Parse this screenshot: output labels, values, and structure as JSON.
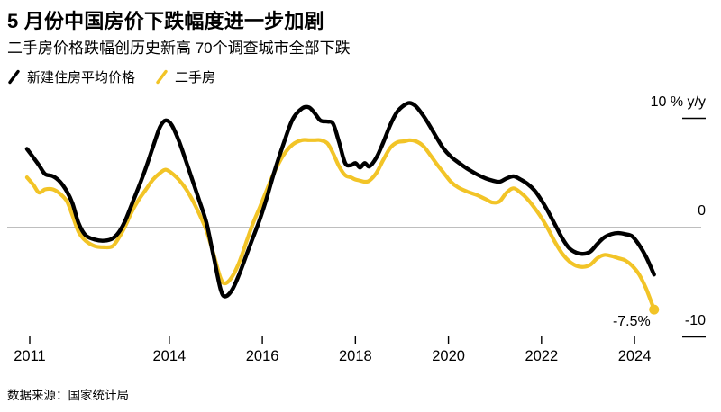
{
  "chart_data": {
    "type": "line",
    "title": "5 月份中国房价下跌幅度进一步加剧",
    "subtitle": "二手房价格跌幅创历史新高 70个调查城市全部下跌",
    "source": "数据来源：国家统计局",
    "unit_label": "% y/y",
    "ylim": [
      -10,
      12
    ],
    "grid": "zero-line-only",
    "legend_position": "top-left",
    "x": [
      2010.94,
      2011.08,
      2011.2,
      2011.33,
      2011.5,
      2011.65,
      2011.8,
      2011.92,
      2012.05,
      2012.2,
      2012.4,
      2012.6,
      2012.78,
      2012.92,
      2013.05,
      2013.2,
      2013.35,
      2013.5,
      2013.65,
      2013.8,
      2013.92,
      2014.05,
      2014.2,
      2014.35,
      2014.5,
      2014.65,
      2014.8,
      2014.95,
      2015.1,
      2015.2,
      2015.35,
      2015.5,
      2015.65,
      2015.8,
      2015.95,
      2016.1,
      2016.25,
      2016.45,
      2016.65,
      2016.85,
      2017.0,
      2017.12,
      2017.25,
      2017.4,
      2017.52,
      2017.65,
      2017.78,
      2017.9,
      2018.0,
      2018.1,
      2018.2,
      2018.3,
      2018.45,
      2018.6,
      2018.75,
      2018.9,
      2019.05,
      2019.17,
      2019.3,
      2019.45,
      2019.6,
      2019.75,
      2019.9,
      2020.05,
      2020.2,
      2020.4,
      2020.6,
      2020.8,
      2020.95,
      2021.1,
      2021.25,
      2021.4,
      2021.55,
      2021.7,
      2021.85,
      2022.0,
      2022.15,
      2022.3,
      2022.45,
      2022.6,
      2022.75,
      2022.9,
      2023.05,
      2023.2,
      2023.35,
      2023.5,
      2023.65,
      2023.8,
      2023.95,
      2024.1,
      2024.25,
      2024.42
    ],
    "series": [
      {
        "id": "new-home-avg-price",
        "name": "新建住房平均价格",
        "color": "#000000",
        "stroke_width": 4.4,
        "end_dot": false,
        "values": [
          7.2,
          6.4,
          5.7,
          4.9,
          4.7,
          4.2,
          3.3,
          2.2,
          0.4,
          -0.7,
          -1.1,
          -1.2,
          -1.0,
          -0.4,
          0.6,
          2.2,
          3.8,
          5.5,
          7.4,
          9.2,
          9.8,
          9.4,
          8.0,
          6.2,
          4.3,
          2.4,
          0.4,
          -2.6,
          -5.6,
          -6.3,
          -5.7,
          -4.3,
          -2.6,
          -0.9,
          0.8,
          2.8,
          5.0,
          7.6,
          9.9,
          10.9,
          11.0,
          10.5,
          9.8,
          9.7,
          9.5,
          7.8,
          5.9,
          5.7,
          5.9,
          5.5,
          5.9,
          5.6,
          6.4,
          7.8,
          9.4,
          10.6,
          11.2,
          11.4,
          11.1,
          10.3,
          9.3,
          8.2,
          7.2,
          6.5,
          6.0,
          5.4,
          4.9,
          4.5,
          4.3,
          4.2,
          4.5,
          4.7,
          4.4,
          4.0,
          3.4,
          2.5,
          1.4,
          0.2,
          -1.0,
          -1.9,
          -2.3,
          -2.4,
          -2.2,
          -1.5,
          -0.9,
          -0.6,
          -0.5,
          -0.6,
          -0.8,
          -1.6,
          -2.7,
          -4.3
        ]
      },
      {
        "id": "secondhand-home",
        "name": "二手房",
        "color": "#F2C427",
        "stroke_width": 4.2,
        "end_dot": true,
        "values": [
          4.6,
          3.9,
          3.2,
          3.5,
          3.5,
          3.1,
          2.4,
          1.1,
          -0.4,
          -1.2,
          -1.7,
          -1.8,
          -1.7,
          -0.9,
          0.1,
          1.5,
          2.6,
          3.5,
          4.4,
          5.0,
          5.3,
          5.0,
          4.4,
          3.6,
          2.5,
          1.2,
          -0.3,
          -2.4,
          -4.6,
          -5.1,
          -4.5,
          -3.2,
          -1.4,
          0.4,
          1.9,
          3.5,
          5.0,
          6.6,
          7.6,
          8.0,
          8.0,
          8.0,
          8.0,
          7.7,
          6.8,
          5.6,
          4.8,
          4.6,
          4.4,
          4.3,
          4.2,
          4.3,
          5.0,
          6.2,
          7.3,
          7.8,
          7.9,
          8.0,
          7.9,
          7.5,
          6.7,
          5.8,
          5.0,
          4.2,
          3.7,
          3.3,
          3.0,
          2.6,
          2.3,
          2.4,
          3.2,
          3.6,
          3.2,
          2.6,
          1.8,
          0.9,
          -0.2,
          -1.4,
          -2.4,
          -3.1,
          -3.5,
          -3.6,
          -3.4,
          -2.8,
          -2.5,
          -2.6,
          -2.8,
          -3.0,
          -3.5,
          -4.3,
          -5.6,
          -7.5
        ]
      }
    ],
    "x_ticks": [
      {
        "year": 2011,
        "label": "2011"
      },
      {
        "year": 2014,
        "label": "2014"
      },
      {
        "year": 2016,
        "label": "2016"
      },
      {
        "year": 2018,
        "label": "2018"
      },
      {
        "year": 2020,
        "label": "2020"
      },
      {
        "year": 2022,
        "label": "2022"
      },
      {
        "year": 2024,
        "label": "2024"
      }
    ],
    "y_ticks": [
      {
        "value": 10,
        "label": "10 % y/y",
        "stub": true
      },
      {
        "value": 0,
        "label": "0",
        "zero_line": true
      },
      {
        "value": -10,
        "label": "-10",
        "stub": true
      }
    ],
    "annotations": [
      {
        "x": 2024.42,
        "y": -7.5,
        "label": "-7.5%"
      }
    ],
    "axis_color": "#7d7d7d",
    "tick_color": "#000000"
  }
}
